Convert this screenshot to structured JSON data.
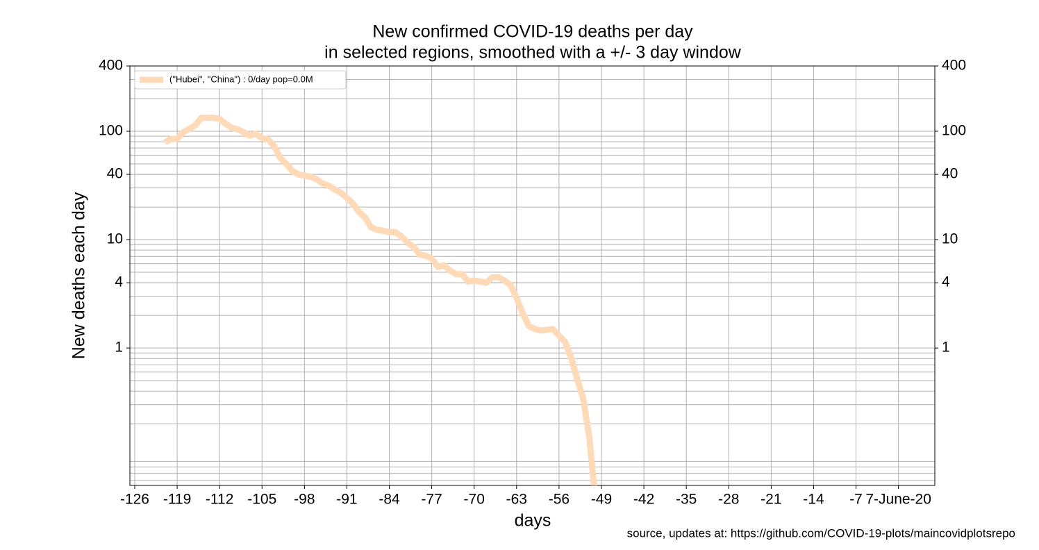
{
  "chart_data": {
    "type": "line",
    "title": [
      "New confirmed COVID-19 deaths per day",
      "in selected regions, smoothed with a +/- 3 day window"
    ],
    "x_label": "days",
    "y_label": "New deaths each day",
    "source": "source, updates at: https://github.com/COVID-19-plots/maincovidplotsrepo",
    "log_scale_y": true,
    "grid": true,
    "minor_grid": true,
    "legend_position": "upper-left",
    "xlim": [
      -126.8,
      6
    ],
    "ylim": [
      0.054,
      400
    ],
    "xticks": [
      -126,
      -119,
      -112,
      -105,
      -98,
      -91,
      -84,
      -77,
      -70,
      -63,
      -56,
      -49,
      -42,
      -35,
      -28,
      -21,
      -14,
      -7,
      {
        "value": 0,
        "label": "7-June-20"
      }
    ],
    "yticks": [
      1,
      4,
      10,
      40,
      100,
      400
    ],
    "x": [
      -121,
      -120,
      -119,
      -118,
      -117,
      -116,
      -115,
      -114,
      -113,
      -112,
      -111,
      -110,
      -109,
      -108,
      -107,
      -106,
      -105,
      -104,
      -103,
      -102,
      -101,
      -100,
      -99,
      -98,
      -97,
      -96,
      -95,
      -94,
      -93,
      -92,
      -91,
      -90,
      -89,
      -88,
      -87,
      -86,
      -85,
      -84,
      -83,
      -82,
      -81,
      -80,
      -79,
      -78,
      -77,
      -76,
      -75,
      -74,
      -73,
      -72,
      -71,
      -70,
      -69,
      -68,
      -67,
      -66,
      -65,
      -64,
      -63,
      -62,
      -61,
      -60,
      -59,
      -58,
      -57,
      -56,
      -55,
      -54,
      -53,
      -52,
      -51,
      -50
    ],
    "series": [
      {
        "name": "(\"Hubei\", \"China\") : 0/day pop=0.0M",
        "color": "#ffdab9",
        "values": [
          79,
          85,
          85,
          98,
          105,
          114,
          133,
          133,
          133,
          130,
          117,
          108,
          104,
          98,
          91,
          95,
          86,
          84,
          73,
          57,
          50,
          43,
          40,
          39,
          38,
          36,
          33,
          31.5,
          29,
          27,
          24.3,
          21.5,
          18,
          16,
          13,
          12.3,
          12.1,
          11.7,
          11.7,
          10.7,
          9.4,
          8.6,
          7.3,
          7.1,
          6.7,
          5.6,
          5.8,
          5.2,
          4.8,
          4.8,
          4.1,
          4.2,
          4.1,
          4.0,
          4.5,
          4.5,
          4.2,
          3.8,
          2.9,
          2.1,
          1.6,
          1.5,
          1.45,
          1.47,
          1.5,
          1.3,
          1.14,
          0.81,
          0.52,
          0.34,
          0.15,
          0.04
        ]
      }
    ]
  }
}
